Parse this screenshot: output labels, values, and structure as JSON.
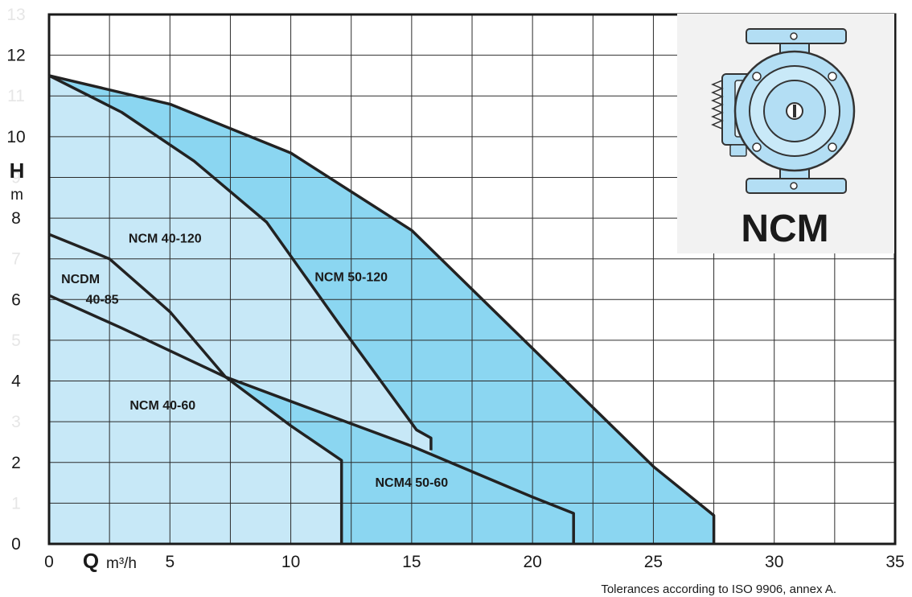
{
  "chart_data": {
    "type": "line",
    "title": "",
    "xlabel": "Q",
    "xlabel_unit": "m³/h",
    "ylabel": "H",
    "ylabel_unit": "m",
    "xlim": [
      0,
      35
    ],
    "ylim": [
      0,
      13
    ],
    "x_ticks": [
      0,
      5,
      10,
      15,
      20,
      25,
      30,
      35
    ],
    "y_ticks": [
      0,
      1,
      2,
      3,
      4,
      5,
      6,
      7,
      8,
      9,
      10,
      11,
      12,
      13
    ],
    "y_ticks_faint": [
      1,
      3,
      5,
      7,
      9,
      11,
      13
    ],
    "grid": true,
    "colors": {
      "light_fill": "#c7e8f7",
      "dark_fill": "#8bd6f1",
      "curve": "#222222",
      "grid": "#2b2b2b"
    },
    "series": [
      {
        "name": "NCM 40-120",
        "fill": "light",
        "x": [
          0,
          3,
          6,
          9,
          12,
          15.2,
          15.8,
          15.8
        ],
        "y": [
          11.5,
          10.6,
          9.4,
          7.9,
          5.4,
          2.8,
          2.6,
          2.3
        ]
      },
      {
        "name": "NCM 50-120",
        "fill": "dark",
        "x": [
          0,
          5,
          10,
          15,
          20,
          25,
          27.5,
          27.5
        ],
        "y": [
          11.5,
          10.8,
          9.6,
          7.7,
          4.8,
          1.9,
          0.7,
          0
        ]
      },
      {
        "name": "NCDM 40-85",
        "fill": "light",
        "x": [
          0,
          2.5,
          5,
          7.3,
          10,
          12.1,
          12.1
        ],
        "y": [
          7.6,
          7.0,
          5.7,
          4.1,
          2.9,
          2.05,
          0
        ]
      },
      {
        "name": "NCM 40-60",
        "fill": "light",
        "x": [
          0,
          3,
          7.3,
          10,
          15,
          20,
          21.7,
          21.7
        ],
        "y": [
          6.1,
          5.3,
          4.1,
          3.5,
          2.4,
          1.15,
          0.75,
          0
        ]
      },
      {
        "name": "NCM4 50-60",
        "fill": "dark",
        "x": [
          12.1,
          21.7
        ],
        "y": [
          0,
          0
        ]
      }
    ],
    "annotations": [
      "Tolerances according to ISO 9906, annex A."
    ]
  },
  "product": {
    "name": "NCM",
    "image_icon": "circulator-pump-icon"
  }
}
